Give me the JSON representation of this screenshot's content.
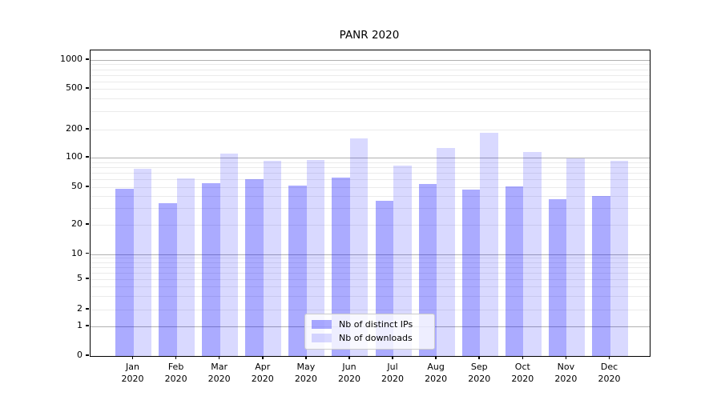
{
  "chart_data": {
    "type": "bar",
    "title": "PANR 2020",
    "categories": [
      "Jan 2020",
      "Feb 2020",
      "Mar 2020",
      "Apr 2020",
      "May 2020",
      "Jun 2020",
      "Jul 2020",
      "Aug 2020",
      "Sep 2020",
      "Oct 2020",
      "Nov 2020",
      "Dec 2020"
    ],
    "month_labels": [
      "Jan",
      "Feb",
      "Mar",
      "Apr",
      "May",
      "Jun",
      "Jul",
      "Aug",
      "Sep",
      "Oct",
      "Nov",
      "Dec"
    ],
    "year": "2020",
    "series": [
      {
        "name": "Nb of distinct IPs",
        "color": "rgba(0,0,255,0.33)",
        "values": [
          48,
          34,
          55,
          60,
          52,
          63,
          36,
          54,
          47,
          51,
          37,
          40
        ]
      },
      {
        "name": "Nb of downloads",
        "color": "rgba(0,0,255,0.15)",
        "values": [
          77,
          61,
          111,
          93,
          95,
          160,
          83,
          128,
          185,
          116,
          99,
          93
        ]
      }
    ],
    "yscale": "symlog",
    "y_ticks": [
      0,
      1,
      2,
      5,
      10,
      20,
      50,
      100,
      200,
      500,
      1000
    ],
    "ylim": [
      0,
      1250
    ],
    "xlabel": "",
    "ylabel": "",
    "grid": "horizontal major (powers of 10) + minor log lines",
    "legend_position": "inside lower-center"
  },
  "colors": {
    "bar_dark": "rgba(0,0,255,0.33)",
    "bar_light": "rgba(0,0,255,0.15)",
    "major_grid": "#b0b0b0",
    "minor_grid": "#ebebeb",
    "axis": "#000000",
    "background": "#ffffff"
  }
}
